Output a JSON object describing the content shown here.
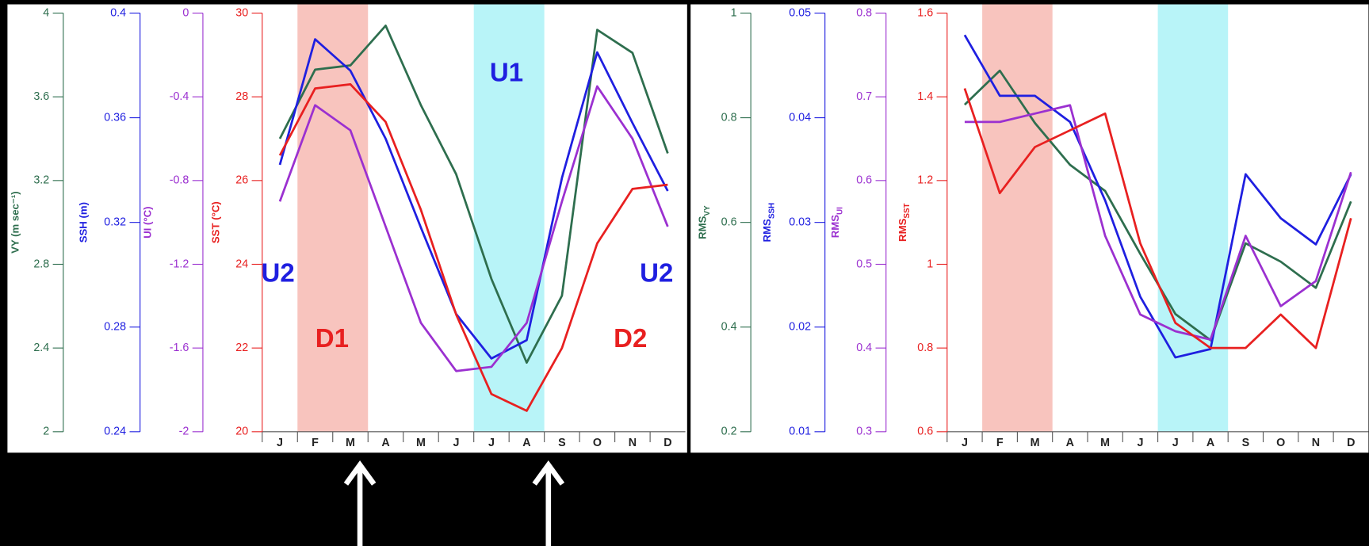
{
  "charts": [
    {
      "type": "line",
      "categories": [
        "J",
        "F",
        "M",
        "A",
        "M",
        "J",
        "J",
        "A",
        "S",
        "O",
        "N",
        "D"
      ],
      "shading": [
        {
          "categories": [
            1,
            2
          ],
          "color": "#f8c4be"
        },
        {
          "categories": [
            6,
            7
          ],
          "color": "#b8f4f8"
        }
      ],
      "axes": [
        {
          "label": "VY (m sec⁻¹)",
          "color": "#2e6e4e",
          "ylim": [
            2,
            4
          ],
          "yticks": [
            2,
            2.4,
            2.8,
            3.2,
            3.6,
            4
          ]
        },
        {
          "label": "SSH (m)",
          "color": "#1f1fe0",
          "ylim": [
            0.24,
            0.4
          ],
          "yticks": [
            0.24,
            0.28,
            0.32,
            0.36,
            0.4
          ]
        },
        {
          "label": "UI (°C)",
          "color": "#9b30d0",
          "ylim": [
            -2,
            0
          ],
          "yticks": [
            -2,
            -1.6,
            -1.2,
            -0.8,
            -0.4,
            0
          ]
        },
        {
          "label": "SST (°C)",
          "color": "#e82020",
          "ylim": [
            20,
            30
          ],
          "yticks": [
            20,
            22,
            24,
            26,
            28,
            30
          ]
        }
      ],
      "series": [
        {
          "axis": 0,
          "color": "#2e6e4e",
          "values": [
            3.4,
            3.73,
            3.75,
            3.94,
            3.56,
            3.23,
            2.73,
            2.33,
            2.65,
            3.92,
            3.81,
            3.33
          ]
        },
        {
          "axis": 1,
          "color": "#1f1fe0",
          "values": [
            0.342,
            0.39,
            0.378,
            0.352,
            0.318,
            0.285,
            0.268,
            0.275,
            0.337,
            0.385,
            0.358,
            0.332
          ]
        },
        {
          "axis": 2,
          "color": "#9b30d0",
          "values": [
            -0.9,
            -0.44,
            -0.56,
            -1.02,
            -1.48,
            -1.71,
            -1.69,
            -1.48,
            -0.9,
            -0.35,
            -0.6,
            -1.02
          ]
        },
        {
          "axis": 3,
          "color": "#e82020",
          "values": [
            26.6,
            28.2,
            28.3,
            27.4,
            25.3,
            22.8,
            20.9,
            20.5,
            22.0,
            24.5,
            25.8,
            25.9
          ]
        }
      ],
      "annotations": [
        {
          "text": "U1",
          "color": "#1f1fe0"
        },
        {
          "text": "U2",
          "color": "#1f1fe0"
        },
        {
          "text": "U2",
          "color": "#1f1fe0"
        },
        {
          "text": "D1",
          "color": "#e82020"
        },
        {
          "text": "D2",
          "color": "#e82020"
        }
      ]
    },
    {
      "type": "line",
      "categories": [
        "J",
        "F",
        "M",
        "A",
        "M",
        "J",
        "J",
        "A",
        "S",
        "O",
        "N",
        "D"
      ],
      "shading": [
        {
          "categories": [
            1,
            2
          ],
          "color": "#f8c4be"
        },
        {
          "categories": [
            6,
            7
          ],
          "color": "#b8f4f8"
        }
      ],
      "axes": [
        {
          "label": "RMS",
          "label_sub": "VY",
          "color": "#2e6e4e",
          "ylim": [
            0.2,
            1
          ],
          "yticks": [
            0.2,
            0.4,
            0.6,
            0.8,
            1
          ]
        },
        {
          "label": "RMS",
          "label_sub": "SSH",
          "color": "#1f1fe0",
          "ylim": [
            0.01,
            0.05
          ],
          "yticks": [
            0.01,
            0.02,
            0.03,
            0.04,
            0.05
          ]
        },
        {
          "label": "RMS",
          "label_sub": "UI",
          "color": "#9b30d0",
          "ylim": [
            0.3,
            0.8
          ],
          "yticks": [
            0.3,
            0.4,
            0.5,
            0.6,
            0.7,
            0.8
          ]
        },
        {
          "label": "RMS",
          "label_sub": "SST",
          "color": "#e82020",
          "ylim": [
            0.6,
            1.6
          ],
          "yticks": [
            0.6,
            0.8,
            1,
            1.2,
            1.4,
            1.6
          ]
        }
      ],
      "series": [
        {
          "axis": 0,
          "color": "#2e6e4e",
          "values": [
            0.825,
            0.89,
            0.79,
            0.71,
            0.66,
            0.54,
            0.425,
            0.375,
            0.56,
            0.525,
            0.475,
            0.64
          ]
        },
        {
          "axis": 1,
          "color": "#1f1fe0",
          "values": [
            0.0479,
            0.0421,
            0.0421,
            0.0396,
            0.0321,
            0.0229,
            0.0171,
            0.0179,
            0.0346,
            0.0304,
            0.0279,
            0.0346
          ]
        },
        {
          "axis": 2,
          "color": "#9b30d0",
          "values": [
            0.67,
            0.67,
            0.68,
            0.69,
            0.534,
            0.44,
            0.42,
            0.41,
            0.534,
            0.45,
            0.48,
            0.61
          ]
        },
        {
          "axis": 3,
          "color": "#e82020",
          "values": [
            1.42,
            1.17,
            1.28,
            1.32,
            1.36,
            1.05,
            0.86,
            0.8,
            0.8,
            0.88,
            0.8,
            1.11
          ]
        }
      ],
      "annotations": []
    }
  ]
}
